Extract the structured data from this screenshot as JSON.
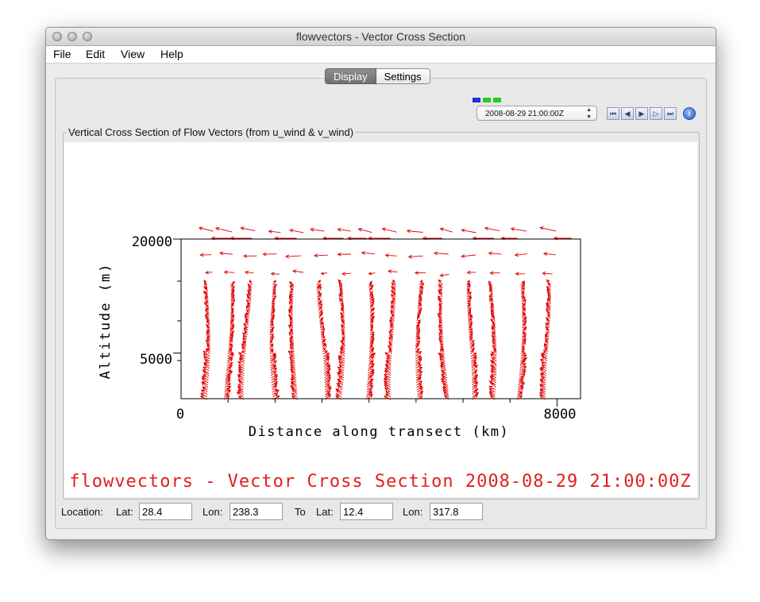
{
  "window": {
    "title": "flowvectors - Vector Cross Section"
  },
  "menu": {
    "items": [
      "File",
      "Edit",
      "View",
      "Help"
    ]
  },
  "tabs": [
    {
      "label": "Display",
      "active": true
    },
    {
      "label": "Settings",
      "active": false
    }
  ],
  "time_indicators": {
    "colors": [
      "#1f2fd8",
      "#22cc22",
      "#22cc22"
    ]
  },
  "animation": {
    "selected_time": "2008-08-29 21:00:00Z",
    "buttons": [
      "rewind-to-start-icon",
      "step-back-icon",
      "play-icon",
      "step-forward-icon",
      "fast-forward-icon",
      "info-icon"
    ]
  },
  "display": {
    "panel_title": "Vertical Cross Section of Flow Vectors (from u_wind & v_wind)",
    "caption": "flowvectors - Vector Cross Section 2008-08-29 21:00:00Z",
    "caption_color": "#e02020"
  },
  "chart_data": {
    "type": "vector",
    "xlabel": "Distance along transect (km)",
    "ylabel": "Altitude (m)",
    "xticks": [
      0,
      8000
    ],
    "yticks": [
      5000,
      20000
    ],
    "xlim": [
      0,
      8500
    ],
    "ylim": [
      -1000,
      20000
    ],
    "vector_color": "#e00000",
    "columns_x_km": [
      550,
      1000,
      1450,
      1950,
      2450,
      2950,
      3450,
      3950,
      4500,
      5050,
      5600,
      6150,
      6650,
      7200,
      7800
    ]
  },
  "location": {
    "label": "Location:",
    "lat_label": "Lat:",
    "lon_label": "Lon:",
    "to_label": "To",
    "start_lat": "28.4",
    "start_lon": "238.3",
    "end_lat": "12.4",
    "end_lon": "317.8"
  }
}
